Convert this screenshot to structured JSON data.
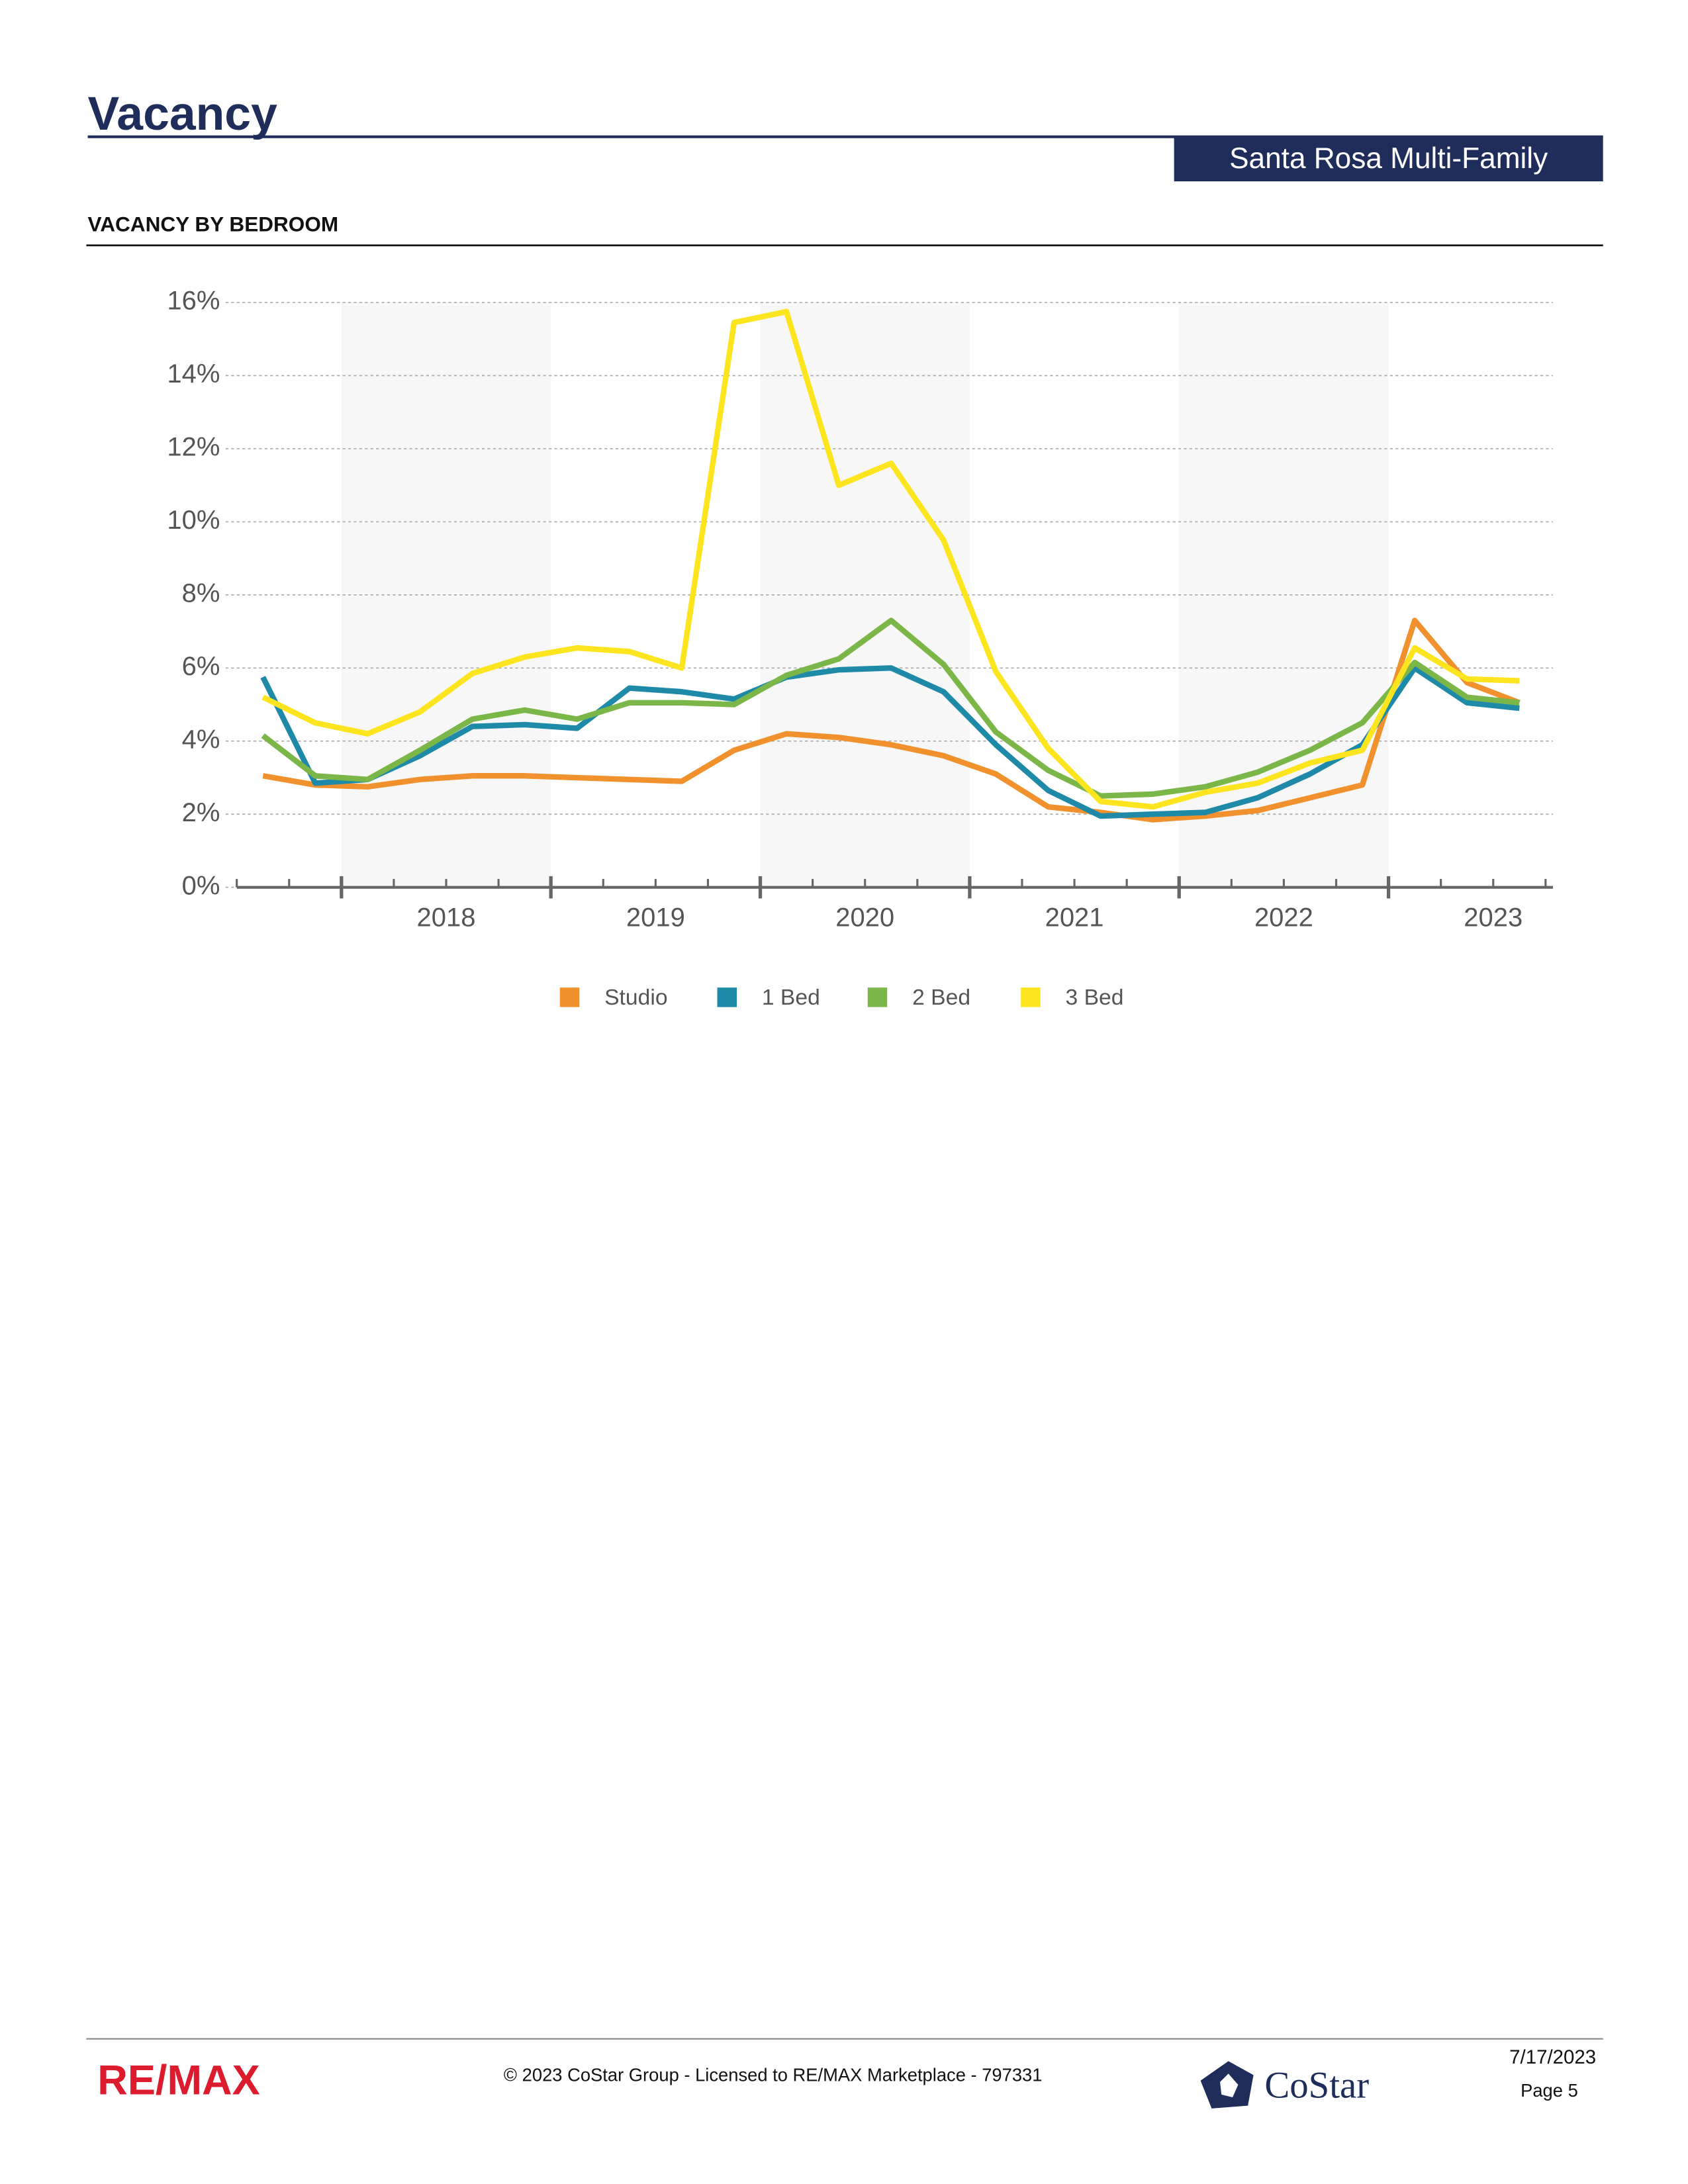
{
  "header": {
    "title": "Vacancy",
    "badge": "Santa Rosa Multi-Family",
    "section": "VACANCY BY BEDROOM"
  },
  "chart_data": {
    "type": "line",
    "x": [
      2017.625,
      2017.875,
      2018.125,
      2018.375,
      2018.625,
      2018.875,
      2019.125,
      2019.375,
      2019.625,
      2019.875,
      2020.125,
      2020.375,
      2020.625,
      2020.875,
      2021.125,
      2021.375,
      2021.625,
      2021.875,
      2022.125,
      2022.375,
      2022.625,
      2022.875,
      2023.125,
      2023.375,
      2023.625
    ],
    "xlim": [
      2017.5,
      2023.785
    ],
    "xticks": [
      {
        "value": 2018.5,
        "label": "2018"
      },
      {
        "value": 2019.5,
        "label": "2019"
      },
      {
        "value": 2020.5,
        "label": "2020"
      },
      {
        "value": 2021.5,
        "label": "2021"
      },
      {
        "value": 2022.5,
        "label": "2022"
      },
      {
        "value": 2023.5,
        "label": "2023"
      }
    ],
    "ylim": [
      0,
      16
    ],
    "yticks": [
      {
        "value": 0,
        "label": "0%"
      },
      {
        "value": 2,
        "label": "2%"
      },
      {
        "value": 4,
        "label": "4%"
      },
      {
        "value": 6,
        "label": "6%"
      },
      {
        "value": 8,
        "label": "8%"
      },
      {
        "value": 10,
        "label": "10%"
      },
      {
        "value": 12,
        "label": "12%"
      },
      {
        "value": 14,
        "label": "14%"
      },
      {
        "value": 16,
        "label": "16%"
      }
    ],
    "grid": true,
    "legend": "bottom",
    "series": [
      {
        "name": "Studio",
        "color": "#f0912d",
        "values": [
          3.05,
          2.8,
          2.75,
          2.95,
          3.05,
          3.05,
          3.0,
          2.95,
          2.9,
          3.75,
          4.2,
          4.1,
          3.9,
          3.6,
          3.1,
          2.2,
          2.05,
          1.85,
          1.95,
          2.1,
          2.45,
          2.8,
          7.3,
          5.6,
          5.05
        ]
      },
      {
        "name": "1 Bed",
        "color": "#1f8aa8",
        "values": [
          5.75,
          2.85,
          2.95,
          3.6,
          4.4,
          4.45,
          4.35,
          5.45,
          5.35,
          5.15,
          5.75,
          5.95,
          6.0,
          5.35,
          3.9,
          2.65,
          1.95,
          2.0,
          2.05,
          2.45,
          3.1,
          3.9,
          6.0,
          5.05,
          4.9
        ]
      },
      {
        "name": "2 Bed",
        "color": "#7ab648",
        "values": [
          4.15,
          3.05,
          2.95,
          3.75,
          4.6,
          4.85,
          4.6,
          5.05,
          5.05,
          5.0,
          5.8,
          6.25,
          7.3,
          6.1,
          4.25,
          3.2,
          2.5,
          2.55,
          2.75,
          3.15,
          3.75,
          4.5,
          6.15,
          5.2,
          5.05
        ]
      },
      {
        "name": "3 Bed",
        "color": "#fce41f",
        "values": [
          5.2,
          4.5,
          4.2,
          4.8,
          5.85,
          6.3,
          6.55,
          6.45,
          6.0,
          15.45,
          15.75,
          11.0,
          11.6,
          9.5,
          5.9,
          3.8,
          2.35,
          2.2,
          2.6,
          2.85,
          3.4,
          3.75,
          6.55,
          5.7,
          5.65
        ]
      }
    ]
  },
  "footer": {
    "brand": "RE/MAX",
    "copyright": "© 2023 CoStar Group - Licensed to RE/MAX Marketplace - 797331",
    "logo": "CoStar",
    "date": "7/17/2023",
    "page": "Page 5"
  }
}
